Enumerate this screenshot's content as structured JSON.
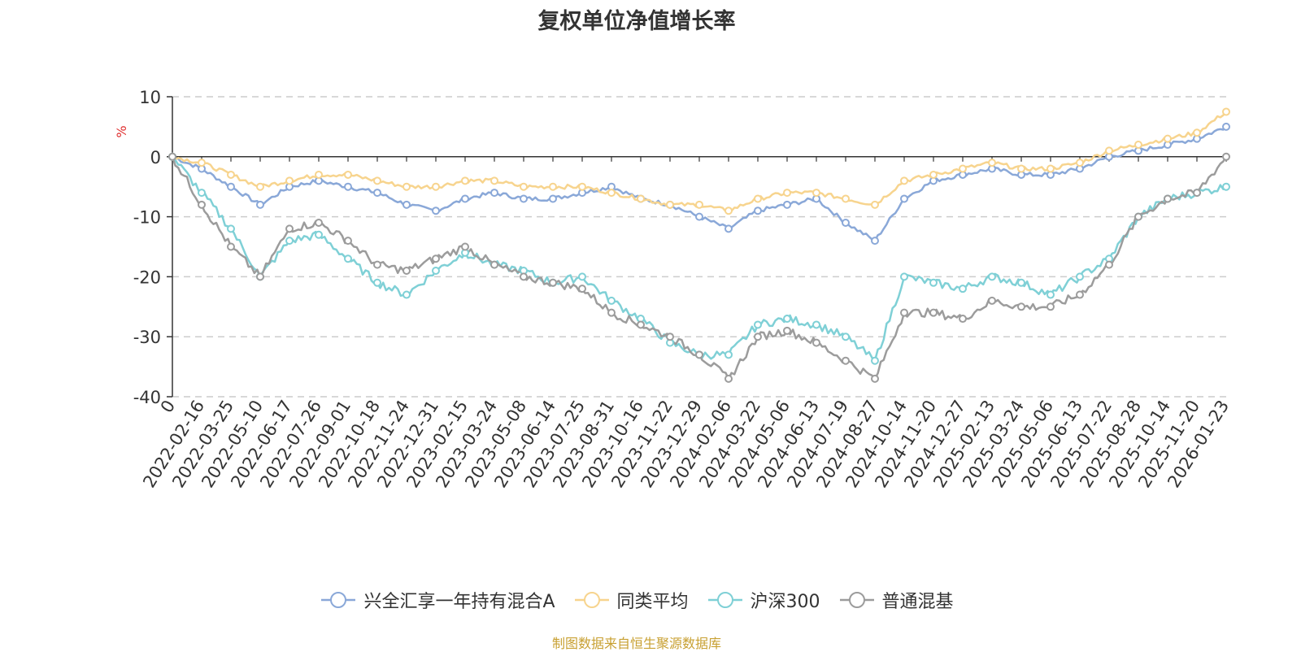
{
  "chart_data": {
    "type": "line",
    "title": "复权单位净值增长率",
    "ylabel": "%",
    "ylim": [
      -40,
      10
    ],
    "yticks": [
      10,
      0,
      -10,
      -20,
      -30,
      -40
    ],
    "xlabels": [
      "0",
      "2022-02-16",
      "2022-03-25",
      "2022-05-10",
      "2022-06-17",
      "2022-07-26",
      "2022-09-01",
      "2022-10-18",
      "2022-11-24",
      "2022-12-31",
      "2023-02-15",
      "2023-03-24",
      "2023-05-08",
      "2023-06-14",
      "2023-07-25",
      "2023-08-31",
      "2023-10-16",
      "2023-11-22",
      "2023-12-29",
      "2024-02-06",
      "2024-03-22",
      "2024-05-06",
      "2024-06-13",
      "2024-07-19",
      "2024-08-27",
      "2024-10-14",
      "2024-11-20",
      "2024-12-27",
      "2025-02-13",
      "2025-03-24",
      "2025-05-06",
      "2025-06-13",
      "2025-07-22",
      "2025-08-28",
      "2025-10-14",
      "2025-11-20",
      "2026-01-23"
    ],
    "series": [
      {
        "name": "兴全汇享一年持有混合A",
        "color": "#8aa8d8",
        "values": [
          0,
          -2,
          -5,
          -8,
          -5,
          -4,
          -5,
          -6,
          -8,
          -9,
          -7,
          -6,
          -7,
          -7,
          -6,
          -5,
          -7,
          -8,
          -10,
          -12,
          -9,
          -8,
          -7,
          -11,
          -14,
          -7,
          -4,
          -3,
          -2,
          -3,
          -3,
          -2,
          0,
          1,
          2,
          3,
          5
        ]
      },
      {
        "name": "同类平均",
        "color": "#f7d48e",
        "values": [
          0,
          -1,
          -3,
          -5,
          -4,
          -3,
          -3,
          -4,
          -5,
          -5,
          -4,
          -4,
          -5,
          -5,
          -5,
          -6,
          -7,
          -8,
          -8,
          -9,
          -7,
          -6,
          -6,
          -7,
          -8,
          -4,
          -3,
          -2,
          -1,
          -2,
          -2,
          -1,
          1,
          2,
          3,
          4,
          7.5
        ]
      },
      {
        "name": "沪深300",
        "color": "#7fd0d6",
        "values": [
          0,
          -6,
          -12,
          -20,
          -14,
          -13,
          -17,
          -21,
          -23,
          -19,
          -16,
          -18,
          -19,
          -21,
          -20,
          -24,
          -27,
          -31,
          -33,
          -33,
          -28,
          -27,
          -28,
          -30,
          -34,
          -20,
          -21,
          -22,
          -20,
          -21,
          -23,
          -20,
          -17,
          -10,
          -7,
          -6,
          -5
        ]
      },
      {
        "name": "普通混基",
        "color": "#9c9c9c",
        "values": [
          0,
          -8,
          -15,
          -20,
          -12,
          -11,
          -14,
          -18,
          -19,
          -17,
          -15,
          -18,
          -20,
          -21,
          -22,
          -26,
          -28,
          -30,
          -33,
          -37,
          -30,
          -29,
          -31,
          -34,
          -37,
          -26,
          -26,
          -27,
          -24,
          -25,
          -25,
          -23,
          -18,
          -10,
          -7,
          -6,
          0
        ]
      }
    ]
  },
  "source_text": "制图数据来自恒生聚源数据库"
}
